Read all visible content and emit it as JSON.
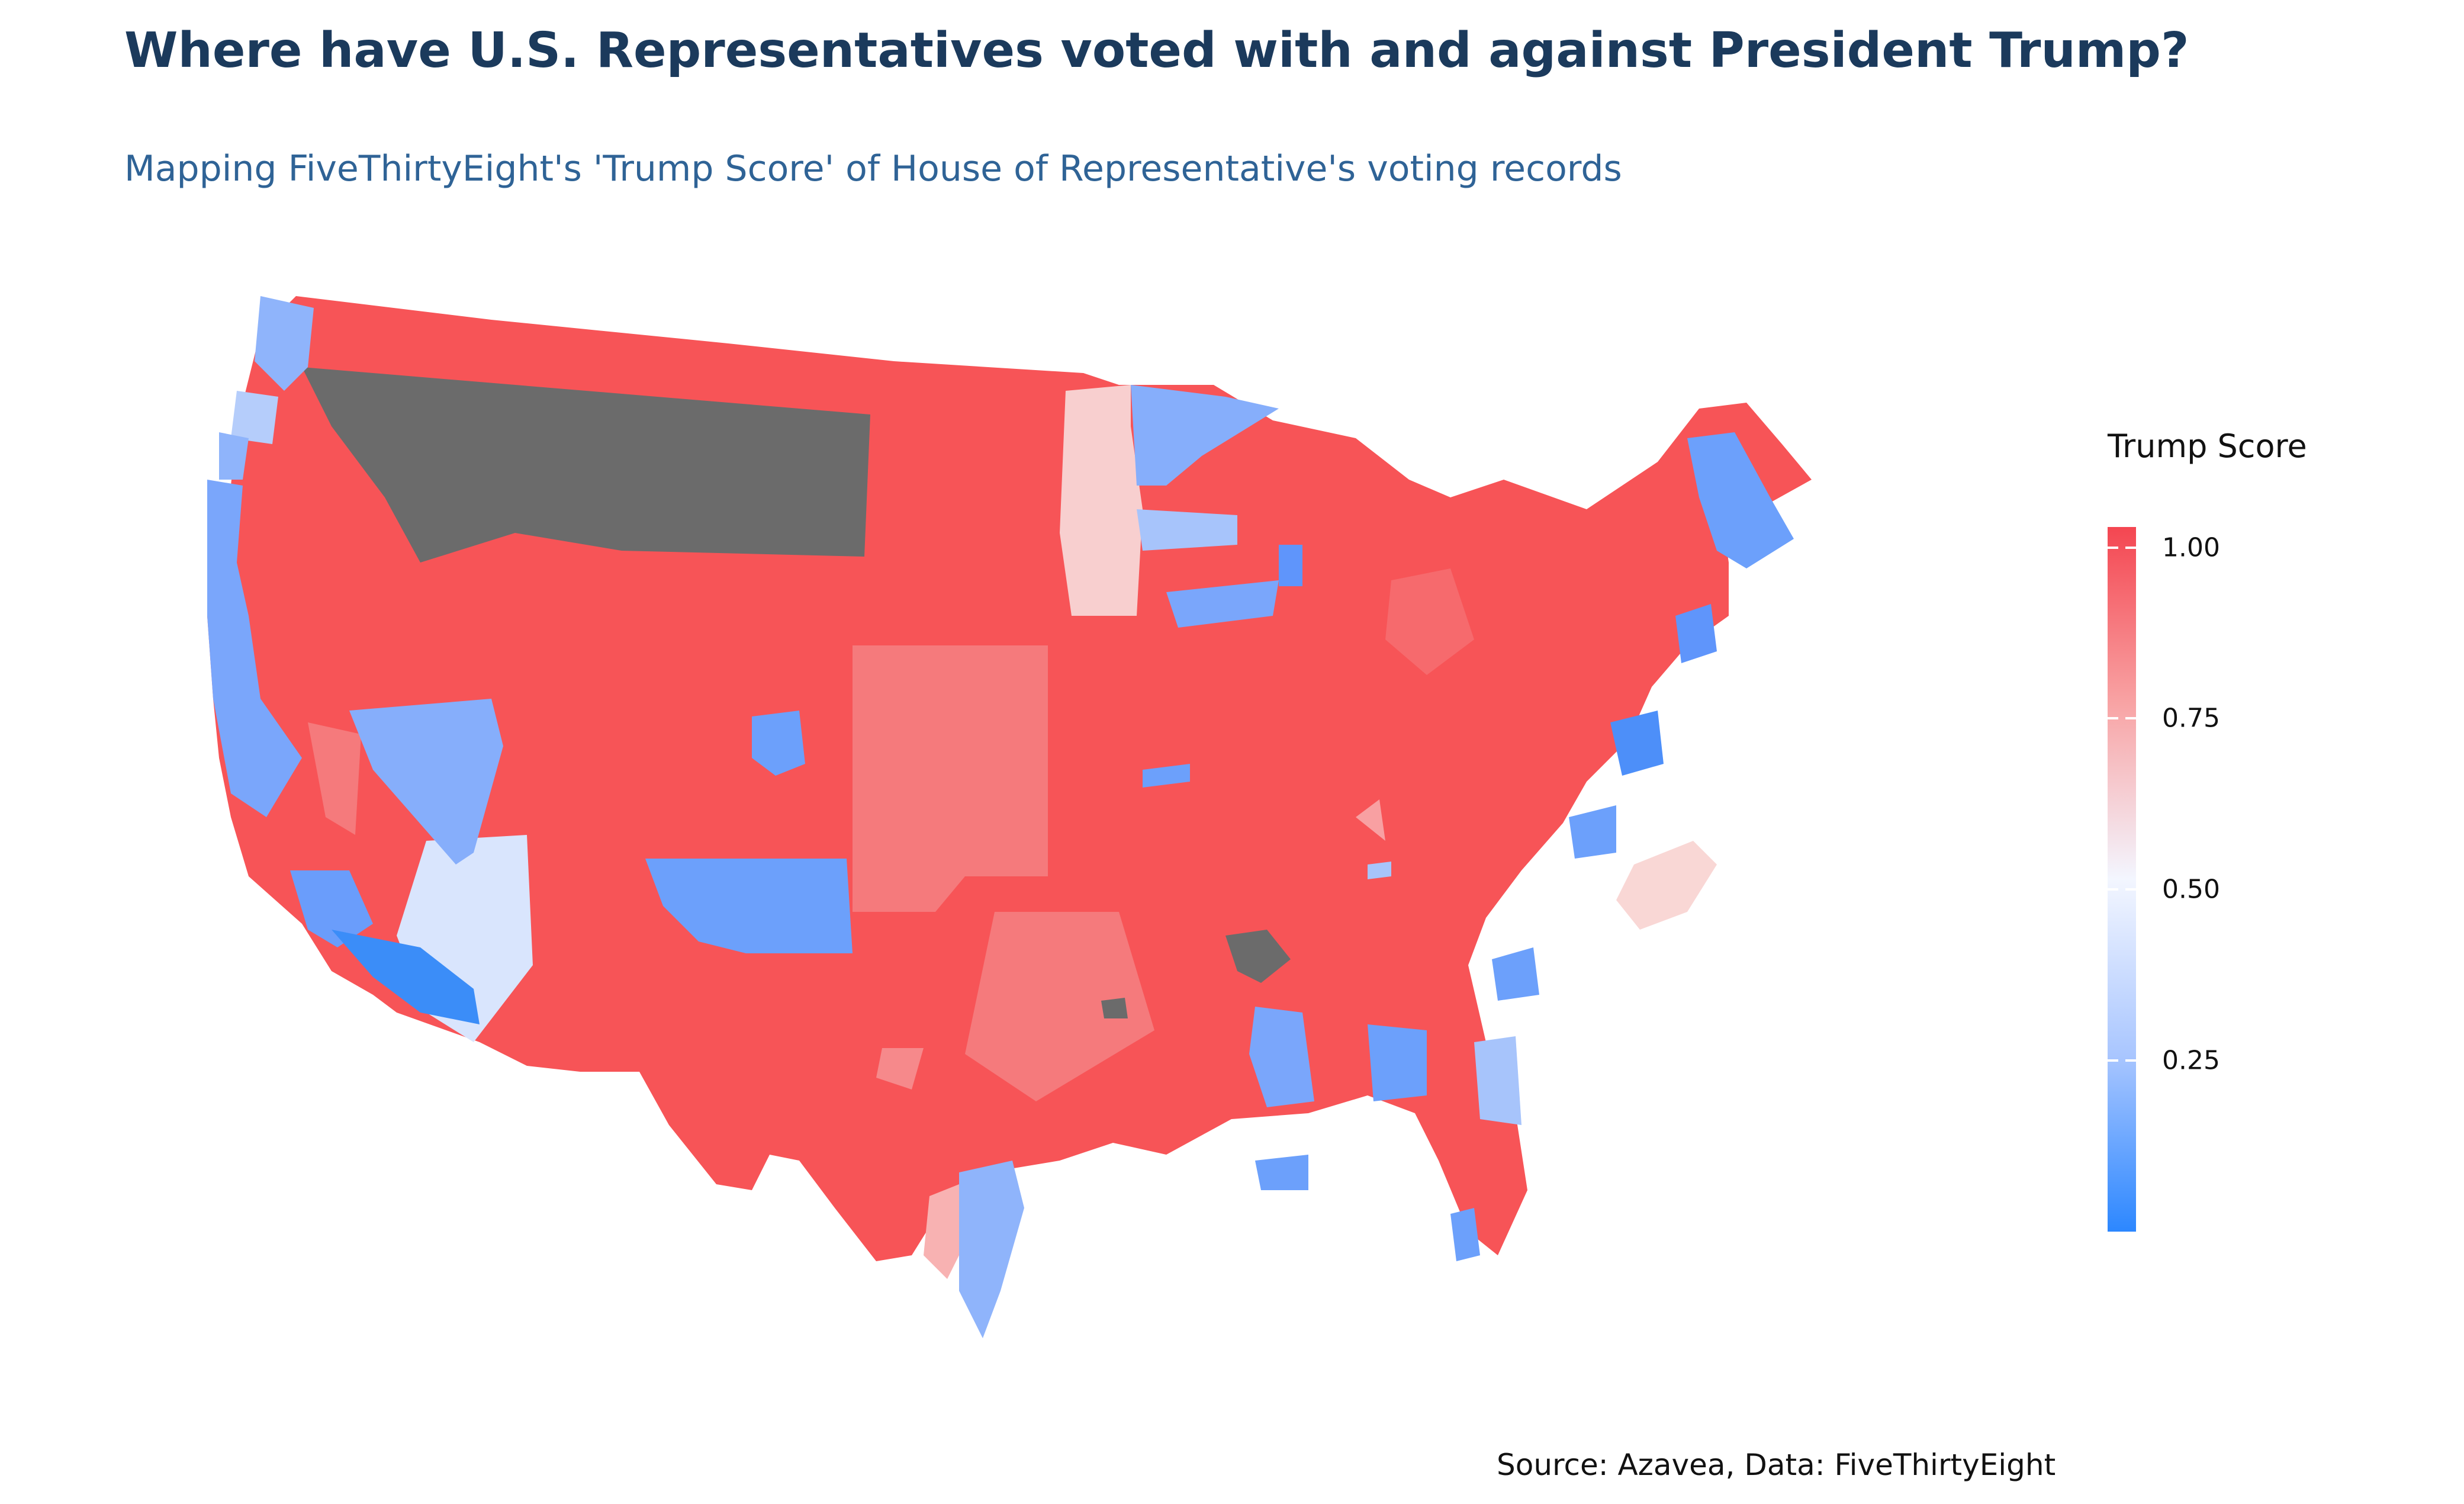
{
  "title": "Where have U.S. Representatives voted with and against President Trump?",
  "subtitle": "Mapping FiveThirtyEight's 'Trump Score' of House of Representative's voting records",
  "legend": {
    "title": "Trump Score",
    "ticks": [
      "1.00",
      "0.75",
      "0.50",
      "0.25"
    ],
    "tick_values": [
      1.0,
      0.75,
      0.5,
      0.25
    ],
    "range": [
      0.0,
      1.03
    ],
    "colors": {
      "high": "#f44651",
      "mid": "#f3f6ff",
      "low": "#2c87ff",
      "missing": "#6b6b6b"
    }
  },
  "source": "Source: Azavea, Data: FiveThirtyEight"
}
